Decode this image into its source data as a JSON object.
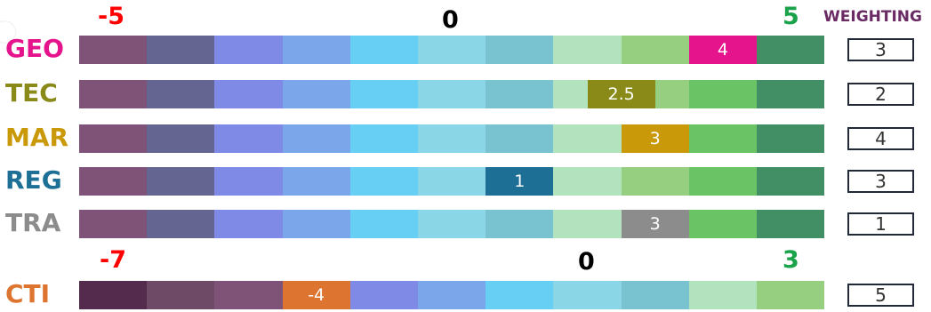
{
  "header": {
    "min": "-5",
    "zero": "0",
    "max": "5",
    "weighting": "WEIGHTING"
  },
  "cti_header": {
    "min": "-7",
    "zero": "0",
    "max": "3"
  },
  "palette": {
    "main": [
      "#7f5278",
      "#656592",
      "#7e8ae6",
      "#7ba7ea",
      "#67cff4",
      "#8bd6e6",
      "#79c2cf",
      "#b3e3be",
      "#97cf80",
      "#6ac466",
      "#438f65"
    ],
    "cti": [
      "#542b4d",
      "#6f4a66",
      "#7f5278",
      "#dd7531",
      "#7e8ae6",
      "#7ba7ea",
      "#67cff4",
      "#8bd6e6",
      "#79c2cf",
      "#b3e3be",
      "#97cf80"
    ]
  },
  "rows": [
    {
      "label": "GEO",
      "color": "#e6148c",
      "score": "4",
      "score_value": 4,
      "marker_color": "#e6148c",
      "weight": "3"
    },
    {
      "label": "TEC",
      "color": "#8a8a18",
      "score": "2.5",
      "score_value": 2.5,
      "marker_color": "#8a8a18",
      "weight": "2"
    },
    {
      "label": "MAR",
      "color": "#c9990a",
      "score": "3",
      "score_value": 3,
      "marker_color": "#c9990a",
      "weight": "4"
    },
    {
      "label": "REG",
      "color": "#1e6f96",
      "score": "1",
      "score_value": 1,
      "marker_color": "#1e6f96",
      "weight": "3"
    },
    {
      "label": "TRA",
      "color": "#8c8c8c",
      "score": "3",
      "score_value": 3,
      "marker_color": "#8c8c8c",
      "weight": "1"
    }
  ],
  "cti": {
    "label": "CTI",
    "color": "#dd7531",
    "score": "-4",
    "score_value": -4,
    "marker_color": "#dd7531",
    "weight": "5"
  }
}
